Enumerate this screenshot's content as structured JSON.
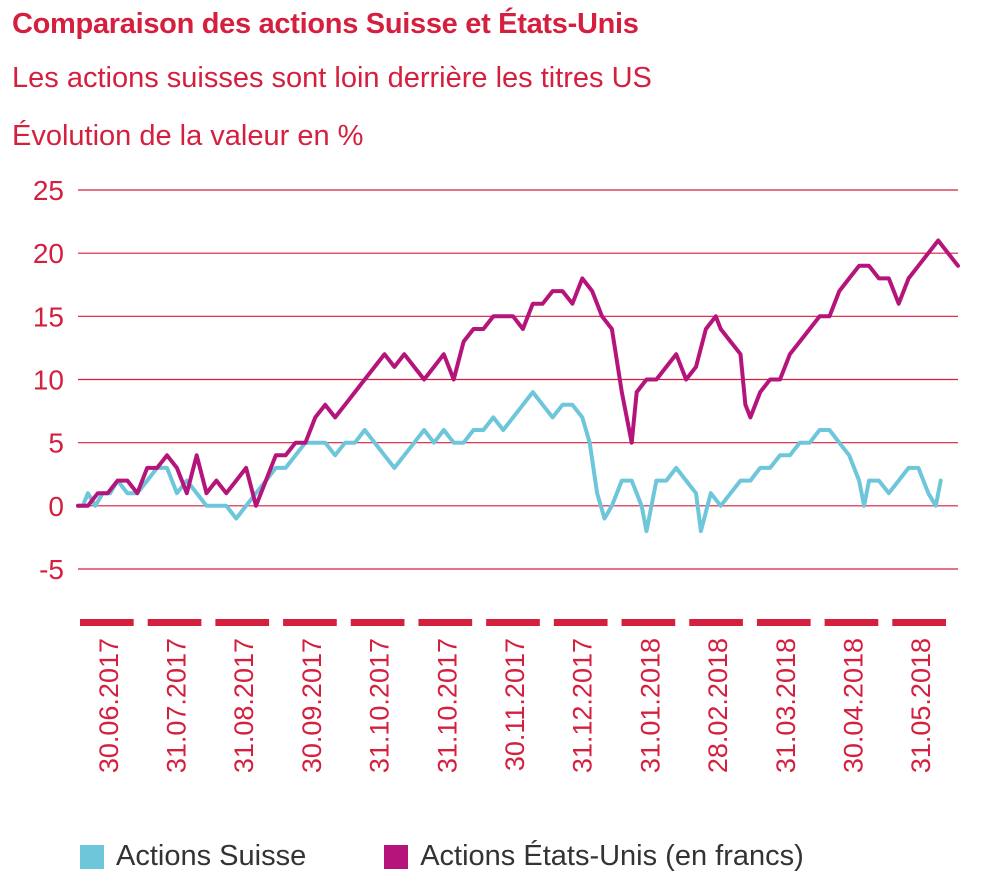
{
  "colors": {
    "accent": "#d51f3f",
    "suisse": "#6ec6da",
    "us": "#b5147a",
    "legend_text": "#333333"
  },
  "header": {
    "title": "Comparaison des actions Suisse et États-Unis",
    "subtitle": "Les actions suisses sont loin derrière les titres US",
    "unit": "Évolution de la valeur en %"
  },
  "legend": {
    "suisse": "Actions Suisse",
    "us": "Actions États-Unis (en francs)"
  },
  "chart_data": {
    "type": "line",
    "title": "Comparaison des actions Suisse et États-Unis",
    "subtitle": "Les actions suisses sont loin derrière les titres US",
    "ylabel": "Évolution de la valeur en %",
    "ylim": [
      -5,
      25
    ],
    "yticks": [
      25,
      20,
      15,
      10,
      5,
      0,
      -5
    ],
    "grid": "horizontal",
    "legend_position": "bottom",
    "x_tick_labels": [
      "30.06.2017",
      "31.07.2017",
      "31.08.2017",
      "30.09.2017",
      "31.10.2017",
      "31.10.2017",
      "30.11.2017",
      "31.12.2017",
      "31.01.2018",
      "28.02.2018",
      "31.03.2018",
      "30.04.2018",
      "31.05.2018"
    ],
    "series": [
      {
        "name": "Actions Suisse",
        "points": [
          [
            0,
            0
          ],
          [
            0.1,
            0
          ],
          [
            0.2,
            1
          ],
          [
            0.35,
            0
          ],
          [
            0.5,
            1
          ],
          [
            0.65,
            1
          ],
          [
            0.8,
            2
          ],
          [
            1.0,
            1
          ],
          [
            1.2,
            1
          ],
          [
            1.4,
            2
          ],
          [
            1.6,
            3
          ],
          [
            1.8,
            3
          ],
          [
            2.0,
            1
          ],
          [
            2.2,
            2
          ],
          [
            2.4,
            1
          ],
          [
            2.6,
            0
          ],
          [
            2.8,
            0
          ],
          [
            3.0,
            0
          ],
          [
            3.2,
            -1
          ],
          [
            3.4,
            0
          ],
          [
            3.6,
            1
          ],
          [
            3.8,
            2
          ],
          [
            4.0,
            3
          ],
          [
            4.2,
            3
          ],
          [
            4.4,
            4
          ],
          [
            4.6,
            5
          ],
          [
            4.8,
            5
          ],
          [
            5.0,
            5
          ],
          [
            5.2,
            4
          ],
          [
            5.4,
            5
          ],
          [
            5.6,
            5
          ],
          [
            5.8,
            6
          ],
          [
            6.0,
            5
          ],
          [
            6.2,
            4
          ],
          [
            6.4,
            3
          ],
          [
            6.6,
            4
          ],
          [
            6.8,
            5
          ],
          [
            7.0,
            6
          ],
          [
            7.2,
            5
          ],
          [
            7.4,
            6
          ],
          [
            7.6,
            5
          ],
          [
            7.8,
            5
          ],
          [
            8.0,
            6
          ],
          [
            8.2,
            6
          ],
          [
            8.4,
            7
          ],
          [
            8.6,
            6
          ],
          [
            8.8,
            7
          ],
          [
            9.0,
            8
          ],
          [
            9.2,
            9
          ],
          [
            9.4,
            8
          ],
          [
            9.6,
            7
          ],
          [
            9.8,
            8
          ],
          [
            10.0,
            8
          ],
          [
            10.2,
            7
          ],
          [
            10.35,
            5
          ],
          [
            10.5,
            1
          ],
          [
            10.65,
            -1
          ],
          [
            10.8,
            0
          ],
          [
            11.0,
            2
          ],
          [
            11.2,
            2
          ],
          [
            11.4,
            0
          ],
          [
            11.5,
            -2
          ],
          [
            11.7,
            2
          ],
          [
            11.9,
            2
          ],
          [
            12.1,
            3
          ],
          [
            12.3,
            2
          ],
          [
            12.5,
            1
          ],
          [
            12.6,
            -2
          ],
          [
            12.8,
            1
          ],
          [
            13.0,
            0
          ],
          [
            13.2,
            1
          ],
          [
            13.4,
            2
          ],
          [
            13.6,
            2
          ],
          [
            13.8,
            3
          ],
          [
            14.0,
            3
          ],
          [
            14.2,
            4
          ],
          [
            14.4,
            4
          ],
          [
            14.6,
            5
          ],
          [
            14.8,
            5
          ],
          [
            15.0,
            6
          ],
          [
            15.2,
            6
          ],
          [
            15.4,
            5
          ],
          [
            15.6,
            4
          ],
          [
            15.8,
            2
          ],
          [
            15.9,
            0
          ],
          [
            16.0,
            2
          ],
          [
            16.2,
            2
          ],
          [
            16.4,
            1
          ],
          [
            16.6,
            2
          ],
          [
            16.8,
            3
          ],
          [
            17.0,
            3
          ],
          [
            17.2,
            1
          ],
          [
            17.35,
            0
          ],
          [
            17.45,
            2
          ]
        ]
      },
      {
        "name": "Actions États-Unis (en francs)",
        "points": [
          [
            0,
            0
          ],
          [
            0.2,
            0
          ],
          [
            0.4,
            1
          ],
          [
            0.6,
            1
          ],
          [
            0.8,
            2
          ],
          [
            1.0,
            2
          ],
          [
            1.2,
            1
          ],
          [
            1.4,
            3
          ],
          [
            1.6,
            3
          ],
          [
            1.8,
            4
          ],
          [
            2.0,
            3
          ],
          [
            2.2,
            1
          ],
          [
            2.4,
            4
          ],
          [
            2.6,
            1
          ],
          [
            2.8,
            2
          ],
          [
            3.0,
            1
          ],
          [
            3.2,
            2
          ],
          [
            3.4,
            3
          ],
          [
            3.6,
            0
          ],
          [
            3.8,
            2
          ],
          [
            4.0,
            4
          ],
          [
            4.2,
            4
          ],
          [
            4.4,
            5
          ],
          [
            4.6,
            5
          ],
          [
            4.8,
            7
          ],
          [
            5.0,
            8
          ],
          [
            5.2,
            7
          ],
          [
            5.4,
            8
          ],
          [
            5.6,
            9
          ],
          [
            5.8,
            10
          ],
          [
            6.0,
            11
          ],
          [
            6.2,
            12
          ],
          [
            6.4,
            11
          ],
          [
            6.6,
            12
          ],
          [
            6.8,
            11
          ],
          [
            7.0,
            10
          ],
          [
            7.2,
            11
          ],
          [
            7.4,
            12
          ],
          [
            7.6,
            10
          ],
          [
            7.8,
            13
          ],
          [
            8.0,
            14
          ],
          [
            8.2,
            14
          ],
          [
            8.4,
            15
          ],
          [
            8.6,
            15
          ],
          [
            8.8,
            15
          ],
          [
            9.0,
            14
          ],
          [
            9.2,
            16
          ],
          [
            9.4,
            16
          ],
          [
            9.6,
            17
          ],
          [
            9.8,
            17
          ],
          [
            10.0,
            16
          ],
          [
            10.2,
            18
          ],
          [
            10.4,
            17
          ],
          [
            10.6,
            15
          ],
          [
            10.8,
            14
          ],
          [
            11.0,
            9
          ],
          [
            11.2,
            5
          ],
          [
            11.3,
            9
          ],
          [
            11.5,
            10
          ],
          [
            11.7,
            10
          ],
          [
            11.9,
            11
          ],
          [
            12.1,
            12
          ],
          [
            12.3,
            10
          ],
          [
            12.5,
            11
          ],
          [
            12.7,
            14
          ],
          [
            12.9,
            15
          ],
          [
            13.0,
            14
          ],
          [
            13.2,
            13
          ],
          [
            13.4,
            12
          ],
          [
            13.5,
            8
          ],
          [
            13.6,
            7
          ],
          [
            13.8,
            9
          ],
          [
            14.0,
            10
          ],
          [
            14.2,
            10
          ],
          [
            14.4,
            12
          ],
          [
            14.6,
            13
          ],
          [
            14.8,
            14
          ],
          [
            15.0,
            15
          ],
          [
            15.2,
            15
          ],
          [
            15.4,
            17
          ],
          [
            15.6,
            18
          ],
          [
            15.8,
            19
          ],
          [
            16.0,
            19
          ],
          [
            16.2,
            18
          ],
          [
            16.4,
            18
          ],
          [
            16.6,
            16
          ],
          [
            16.8,
            18
          ],
          [
            17.0,
            19
          ],
          [
            17.2,
            20
          ],
          [
            17.4,
            21
          ],
          [
            17.6,
            20
          ],
          [
            17.8,
            19
          ]
        ]
      }
    ]
  }
}
